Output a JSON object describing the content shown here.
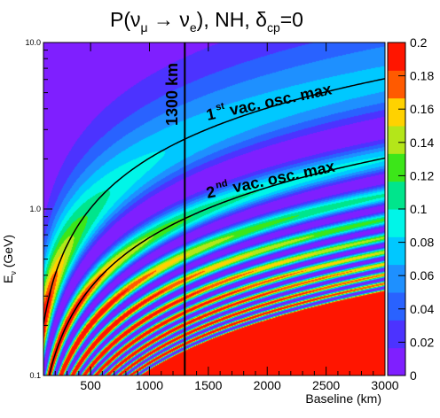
{
  "chart_data": {
    "type": "heatmap",
    "title": {
      "prefix": "P(",
      "nu_mu": "ν",
      "mu_sub": "μ",
      "arrow": " → ",
      "nu_e": "ν",
      "e_sub": "e",
      "middle": "), NH, ",
      "delta": "δ",
      "cp_sub": "cp",
      "suffix": "=0"
    },
    "xlabel": "Baseline (km)",
    "ylabel": "E",
    "ylabel_sub": "ν",
    "ylabel_unit": " (GeV)",
    "x_range": [
      100,
      3000
    ],
    "y_range": [
      0.1,
      10.0
    ],
    "y_scale": "log",
    "z_range": [
      0,
      0.2
    ],
    "x_ticks": [
      "500",
      "1000",
      "1500",
      "2000",
      "2500",
      "3000"
    ],
    "x_tick_values": [
      500,
      1000,
      1500,
      2000,
      2500,
      3000
    ],
    "y_ticks": [
      "0.1",
      "1.0",
      "10.0"
    ],
    "y_tick_values": [
      0.1,
      1.0,
      10.0
    ],
    "z_ticks": [
      "0",
      "0.02",
      "0.04",
      "0.06",
      "0.08",
      "0.1",
      "0.12",
      "0.14",
      "0.16",
      "0.18",
      "0.2"
    ],
    "z_tick_values": [
      0,
      0.02,
      0.04,
      0.06,
      0.08,
      0.1,
      0.12,
      0.14,
      0.16,
      0.18,
      0.2
    ],
    "palette": [
      "#7f1fff",
      "#4c33ff",
      "#2962ff",
      "#1e90ff",
      "#00c8ff",
      "#00f5e8",
      "#00e58c",
      "#3ce619",
      "#b4e619",
      "#ffd200",
      "#ff5a00",
      "#ff1500"
    ],
    "vertical_line": {
      "baseline_km": 1300,
      "label": "1300 km"
    },
    "curves": [
      {
        "label_num": "1",
        "label_sup": "st",
        "label_text": " vac. osc. max",
        "n": 1
      },
      {
        "label_num": "2",
        "label_sup": "nd",
        "label_text": " vac. osc. max",
        "n": 3
      }
    ]
  }
}
